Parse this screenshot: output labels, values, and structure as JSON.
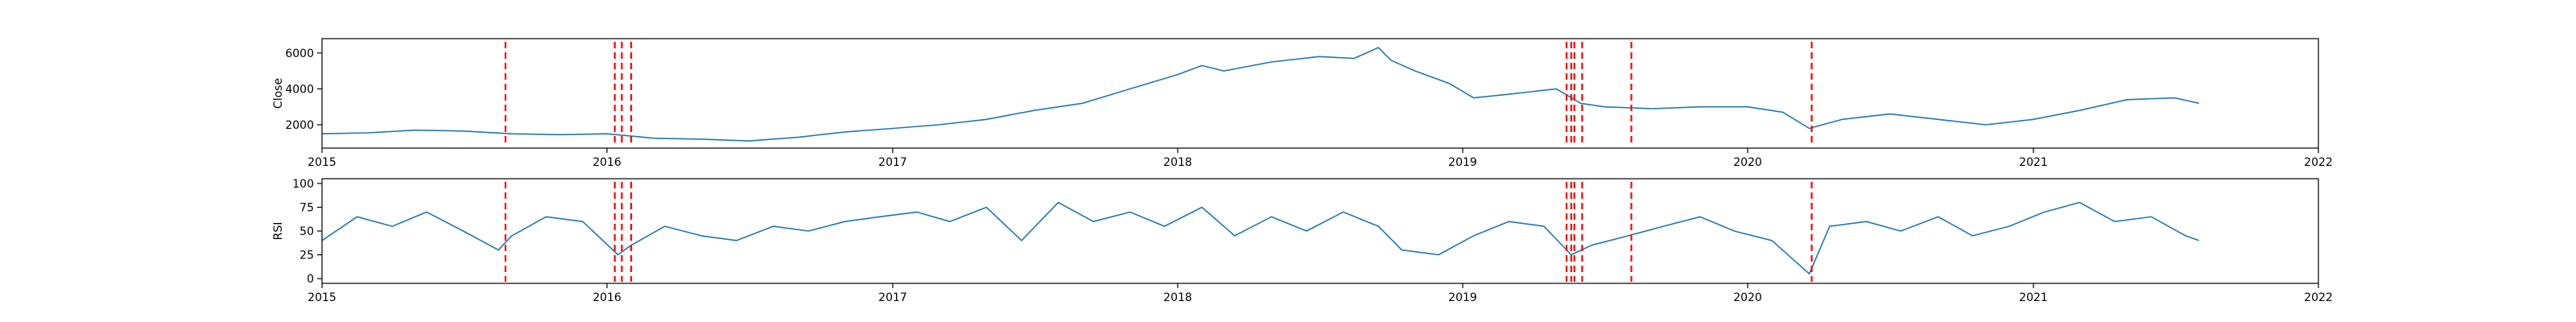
{
  "chart_data": [
    {
      "type": "line",
      "ylabel": "Close",
      "xlabel": "",
      "title": "",
      "xlim": [
        "2015-01-01",
        "2022-01-01"
      ],
      "ylim": [
        700,
        6800
      ],
      "x_ticks": [
        "2015",
        "2016",
        "2017",
        "2018",
        "2019",
        "2020",
        "2021",
        "2022"
      ],
      "y_ticks": [
        2000,
        4000,
        6000
      ],
      "grid": false,
      "series": [
        {
          "color": "#1f77b4",
          "x": [
            "2015-01-01",
            "2015-03-01",
            "2015-05-01",
            "2015-07-01",
            "2015-09-01",
            "2015-11-01",
            "2016-01-01",
            "2016-03-01",
            "2016-05-01",
            "2016-07-01",
            "2016-09-01",
            "2016-11-01",
            "2017-01-01",
            "2017-03-01",
            "2017-05-01",
            "2017-07-01",
            "2017-09-01",
            "2017-11-01",
            "2018-01-01",
            "2018-02-01",
            "2018-03-01",
            "2018-05-01",
            "2018-07-01",
            "2018-08-15",
            "2018-09-15",
            "2018-10-01",
            "2018-11-01",
            "2018-12-15",
            "2019-01-15",
            "2019-03-01",
            "2019-05-01",
            "2019-06-01",
            "2019-07-01",
            "2019-09-01",
            "2019-11-01",
            "2020-01-01",
            "2020-02-15",
            "2020-03-20",
            "2020-05-01",
            "2020-07-01",
            "2020-09-01",
            "2020-11-01",
            "2021-01-01",
            "2021-03-01",
            "2021-05-01",
            "2021-07-01",
            "2021-08-01"
          ],
          "values": [
            1500,
            1550,
            1700,
            1650,
            1500,
            1450,
            1500,
            1250,
            1200,
            1100,
            1300,
            1600,
            1800,
            2000,
            2300,
            2800,
            3200,
            4000,
            4800,
            5300,
            5000,
            5500,
            5800,
            5700,
            6300,
            5600,
            5000,
            4300,
            3500,
            3700,
            4000,
            3200,
            3000,
            2900,
            3000,
            3000,
            2700,
            1800,
            2300,
            2600,
            2300,
            2000,
            2300,
            2800,
            3400,
            3500,
            3200
          ]
        }
      ],
      "vlines": {
        "color": "#ff0000",
        "dates": [
          "2015-08-24",
          "2016-01-11",
          "2016-01-20",
          "2016-02-01",
          "2019-05-14",
          "2019-05-20",
          "2019-05-24",
          "2019-06-03",
          "2019-08-05",
          "2020-03-23"
        ]
      }
    },
    {
      "type": "line",
      "ylabel": "RSI",
      "xlabel": "",
      "title": "",
      "xlim": [
        "2015-01-01",
        "2022-01-01"
      ],
      "ylim": [
        -5,
        105
      ],
      "x_ticks": [
        "2015",
        "2016",
        "2017",
        "2018",
        "2019",
        "2020",
        "2021",
        "2022"
      ],
      "y_ticks": [
        0,
        25,
        50,
        75,
        100
      ],
      "grid": false,
      "series": [
        {
          "color": "#1f77b4",
          "x": [
            "2015-01-01",
            "2015-02-15",
            "2015-04-01",
            "2015-05-15",
            "2015-07-01",
            "2015-08-15",
            "2015-09-01",
            "2015-10-15",
            "2015-12-01",
            "2016-01-15",
            "2016-02-01",
            "2016-03-15",
            "2016-05-01",
            "2016-06-15",
            "2016-08-01",
            "2016-09-15",
            "2016-11-01",
            "2016-12-15",
            "2017-02-01",
            "2017-03-15",
            "2017-05-01",
            "2017-06-15",
            "2017-08-01",
            "2017-09-15",
            "2017-11-01",
            "2017-12-15",
            "2018-02-01",
            "2018-03-15",
            "2018-05-01",
            "2018-06-15",
            "2018-08-01",
            "2018-09-15",
            "2018-10-15",
            "2018-12-01",
            "2019-01-15",
            "2019-03-01",
            "2019-04-15",
            "2019-05-20",
            "2019-06-15",
            "2019-08-01",
            "2019-09-15",
            "2019-11-01",
            "2019-12-15",
            "2020-02-01",
            "2020-03-20",
            "2020-04-15",
            "2020-06-01",
            "2020-07-15",
            "2020-09-01",
            "2020-10-15",
            "2020-12-01",
            "2021-01-15",
            "2021-03-01",
            "2021-04-15",
            "2021-06-01",
            "2021-07-15",
            "2021-08-01"
          ],
          "values": [
            40,
            65,
            55,
            70,
            50,
            30,
            45,
            65,
            60,
            25,
            35,
            55,
            45,
            40,
            55,
            50,
            60,
            65,
            70,
            60,
            75,
            40,
            80,
            60,
            70,
            55,
            75,
            45,
            65,
            50,
            70,
            55,
            30,
            25,
            45,
            60,
            55,
            25,
            35,
            45,
            55,
            65,
            50,
            40,
            5,
            55,
            60,
            50,
            65,
            45,
            55,
            70,
            80,
            60,
            65,
            45,
            40
          ]
        }
      ],
      "vlines": {
        "color": "#ff0000",
        "dates": [
          "2015-08-24",
          "2016-01-11",
          "2016-01-20",
          "2016-02-01",
          "2019-05-14",
          "2019-05-20",
          "2019-05-24",
          "2019-06-03",
          "2019-08-05",
          "2020-03-23"
        ]
      }
    }
  ]
}
